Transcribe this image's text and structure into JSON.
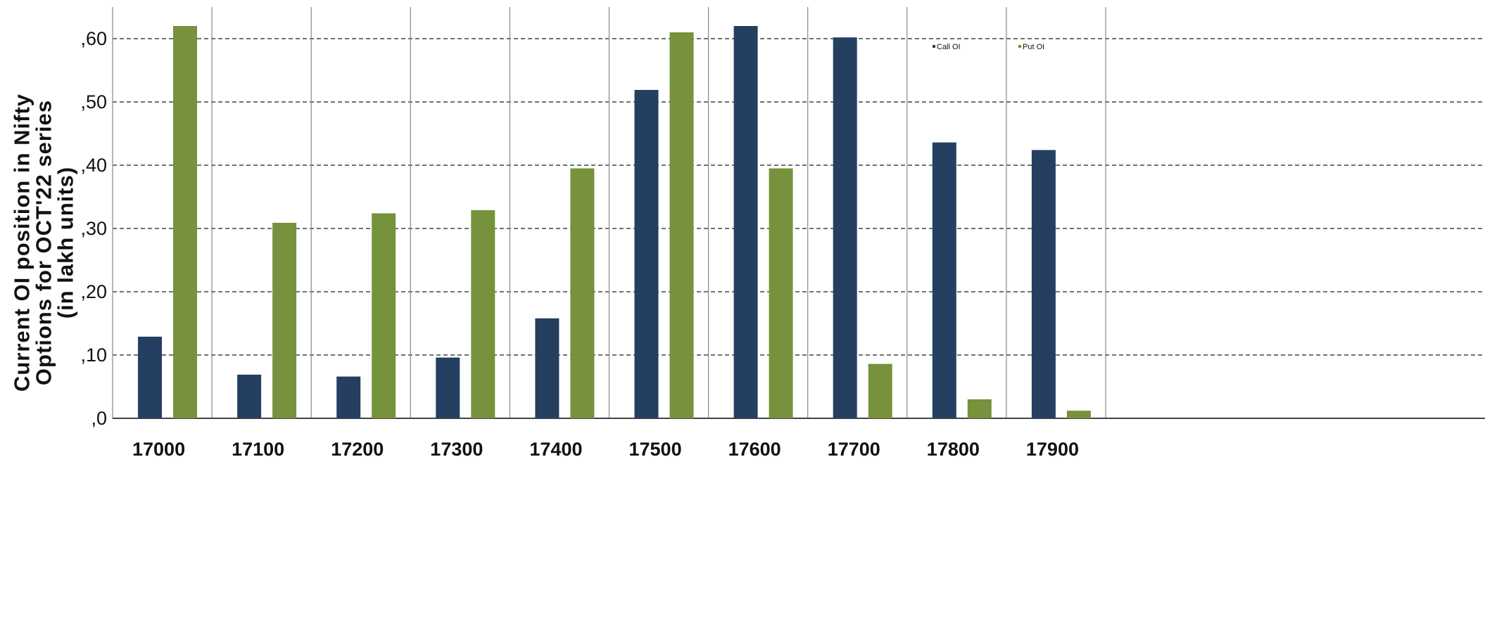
{
  "chart_data": {
    "type": "bar",
    "title": "",
    "ylabel": "Current OI position in Nifty\nOptions for OCT'22 series\n(in lakh  units)",
    "xlabel": "",
    "categories": [
      "17000",
      "17100",
      "17200",
      "17300",
      "17400",
      "17500",
      "17600",
      "17700",
      "17800",
      "17900"
    ],
    "series": [
      {
        "name": "Call OI",
        "color": "#243f60",
        "values": [
          12.9,
          6.9,
          6.6,
          9.6,
          15.8,
          51.9,
          62.0,
          60.2,
          43.6,
          42.4
        ]
      },
      {
        "name": "Put OI",
        "color": "#76923c",
        "values": [
          62.0,
          30.9,
          32.4,
          32.9,
          39.5,
          61.0,
          39.5,
          8.6,
          3.0,
          1.2
        ]
      }
    ],
    "ylim": [
      0,
      65
    ],
    "yticks": [
      0,
      10,
      20,
      30,
      40,
      50,
      60
    ],
    "ytick_labels": [
      ",0",
      ",10",
      ",20",
      ",30",
      ",40",
      ",50",
      ",60"
    ],
    "grid": true,
    "legend_position": "top-right"
  }
}
